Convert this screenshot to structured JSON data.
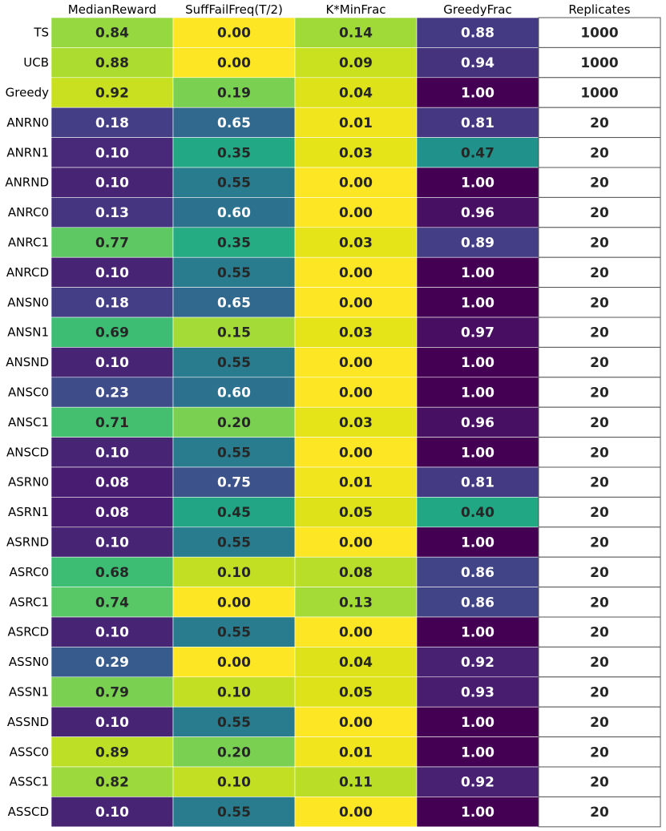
{
  "chart_data": {
    "type": "heatmap",
    "colormap": "viridis",
    "columns": [
      "MedianReward",
      "SuffFailFreq(T/2)",
      "K*MinFrac",
      "GreedyFrac",
      "Replicates"
    ],
    "rows": [
      "TS",
      "UCB",
      "Greedy",
      "ANRN0",
      "ANRN1",
      "ANRND",
      "ANRC0",
      "ANRC1",
      "ANRCD",
      "ANSN0",
      "ANSN1",
      "ANSND",
      "ANSC0",
      "ANSC1",
      "ANSCD",
      "ASRN0",
      "ASRN1",
      "ASRND",
      "ASRC0",
      "ASRC1",
      "ASRCD",
      "ASSN0",
      "ASSN1",
      "ASSND",
      "ASSC0",
      "ASSC1",
      "ASSCD"
    ],
    "values": [
      [
        "0.84",
        "0.00",
        "0.14",
        "0.88",
        "1000"
      ],
      [
        "0.88",
        "0.00",
        "0.09",
        "0.94",
        "1000"
      ],
      [
        "0.92",
        "0.19",
        "0.04",
        "1.00",
        "1000"
      ],
      [
        "0.18",
        "0.65",
        "0.01",
        "0.81",
        "20"
      ],
      [
        "0.10",
        "0.35",
        "0.03",
        "0.47",
        "20"
      ],
      [
        "0.10",
        "0.55",
        "0.00",
        "1.00",
        "20"
      ],
      [
        "0.13",
        "0.60",
        "0.00",
        "0.96",
        "20"
      ],
      [
        "0.77",
        "0.35",
        "0.03",
        "0.89",
        "20"
      ],
      [
        "0.10",
        "0.55",
        "0.00",
        "1.00",
        "20"
      ],
      [
        "0.18",
        "0.65",
        "0.00",
        "1.00",
        "20"
      ],
      [
        "0.69",
        "0.15",
        "0.03",
        "0.97",
        "20"
      ],
      [
        "0.10",
        "0.55",
        "0.00",
        "1.00",
        "20"
      ],
      [
        "0.23",
        "0.60",
        "0.00",
        "1.00",
        "20"
      ],
      [
        "0.71",
        "0.20",
        "0.03",
        "0.96",
        "20"
      ],
      [
        "0.10",
        "0.55",
        "0.00",
        "1.00",
        "20"
      ],
      [
        "0.08",
        "0.75",
        "0.01",
        "0.81",
        "20"
      ],
      [
        "0.08",
        "0.45",
        "0.05",
        "0.40",
        "20"
      ],
      [
        "0.10",
        "0.55",
        "0.00",
        "1.00",
        "20"
      ],
      [
        "0.68",
        "0.10",
        "0.08",
        "0.86",
        "20"
      ],
      [
        "0.74",
        "0.00",
        "0.13",
        "0.86",
        "20"
      ],
      [
        "0.10",
        "0.55",
        "0.00",
        "1.00",
        "20"
      ],
      [
        "0.29",
        "0.00",
        "0.04",
        "0.92",
        "20"
      ],
      [
        "0.79",
        "0.10",
        "0.05",
        "0.93",
        "20"
      ],
      [
        "0.10",
        "0.55",
        "0.00",
        "1.00",
        "20"
      ],
      [
        "0.89",
        "0.20",
        "0.01",
        "1.00",
        "20"
      ],
      [
        "0.82",
        "0.10",
        "0.11",
        "0.92",
        "20"
      ],
      [
        "0.10",
        "0.55",
        "0.00",
        "1.00",
        "20"
      ]
    ],
    "colors": [
      [
        "#95d840",
        "#fde725",
        "#a0da39",
        "#443983"
      ],
      [
        "#addc30",
        "#fde725",
        "#cae11f",
        "#46337e"
      ],
      [
        "#c8e020",
        "#7ad151",
        "#dde318",
        "#440154"
      ],
      [
        "#433e85",
        "#31688e",
        "#f1e51d",
        "#453781"
      ],
      [
        "#482878",
        "#22a884",
        "#e5e419",
        "#21918c"
      ],
      [
        "#482475",
        "#287c8e",
        "#fde725",
        "#440154"
      ],
      [
        "#453581",
        "#2c718e",
        "#fde725",
        "#471063"
      ],
      [
        "#5ec962",
        "#25ac82",
        "#e5e419",
        "#433e85"
      ],
      [
        "#482475",
        "#287c8e",
        "#fde725",
        "#440154"
      ],
      [
        "#433e85",
        "#31688e",
        "#fde725",
        "#440154"
      ],
      [
        "#3dbc74",
        "#a5db36",
        "#e5e419",
        "#470e61"
      ],
      [
        "#482475",
        "#287c8e",
        "#fde725",
        "#440154"
      ],
      [
        "#3e4c8a",
        "#2c718e",
        "#fde725",
        "#440154"
      ],
      [
        "#44bf70",
        "#7ad151",
        "#e5e419",
        "#471063"
      ],
      [
        "#482475",
        "#287c8e",
        "#fde725",
        "#440154"
      ],
      [
        "#471c71",
        "#3b528b",
        "#f1e51d",
        "#443983"
      ],
      [
        "#471c71",
        "#21a585",
        "#dde318",
        "#22a785"
      ],
      [
        "#482475",
        "#287c8e",
        "#fde725",
        "#440154"
      ],
      [
        "#3dbc74",
        "#c2df23",
        "#b8de29",
        "#414487"
      ],
      [
        "#58c765",
        "#fde725",
        "#a5db36",
        "#414487"
      ],
      [
        "#482475",
        "#287c8e",
        "#fde725",
        "#440154"
      ],
      [
        "#375b8d",
        "#fde725",
        "#dde318",
        "#482173"
      ],
      [
        "#7ad151",
        "#c2df23",
        "#dde318",
        "#481c6e"
      ],
      [
        "#482475",
        "#287c8e",
        "#fde725",
        "#440154"
      ],
      [
        "#bddf26",
        "#7ad151",
        "#f1e51d",
        "#440154"
      ],
      [
        "#9bd93c",
        "#c2df23",
        "#bade28",
        "#482173"
      ],
      [
        "#482475",
        "#287c8e",
        "#fde725",
        "#440154"
      ]
    ]
  }
}
